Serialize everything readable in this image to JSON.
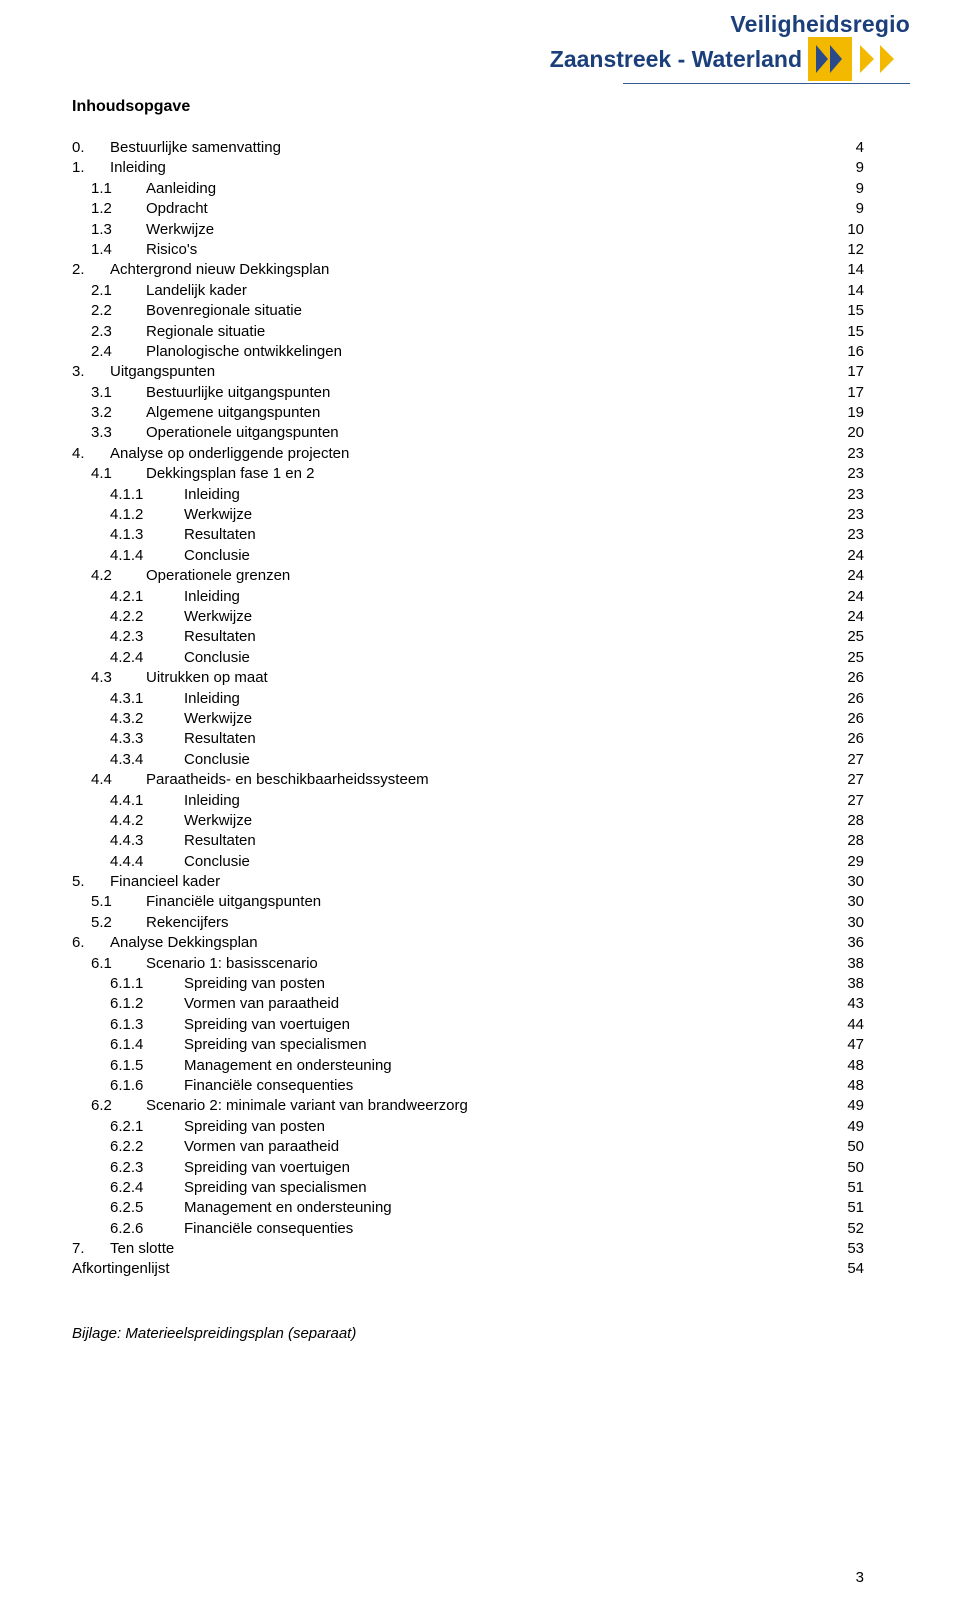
{
  "logo": {
    "line1": "Veiligheidsregio",
    "line2": "Zaanstreek - Waterland",
    "text_color": "#1b3f7a",
    "chevron_yellow": "#f2b900",
    "chevron_blue": "#2a4a8a"
  },
  "title": "Inhoudsopgave",
  "page_number": "3",
  "bijlage": "Bijlage: Materieelspreidingsplan (separaat)",
  "toc": [
    {
      "lvl": 0,
      "num": "0.",
      "txt": "Bestuurlijke samenvatting",
      "pg": "4"
    },
    {
      "lvl": 0,
      "num": "1.",
      "txt": "Inleiding",
      "pg": "9"
    },
    {
      "lvl": 1,
      "num": "1.1",
      "txt": "Aanleiding",
      "pg": "9"
    },
    {
      "lvl": 1,
      "num": "1.2",
      "txt": "Opdracht",
      "pg": "9"
    },
    {
      "lvl": 1,
      "num": "1.3",
      "txt": "Werkwijze",
      "pg": "10"
    },
    {
      "lvl": 1,
      "num": "1.4",
      "txt": "Risico's",
      "pg": "12"
    },
    {
      "lvl": 0,
      "num": "2.",
      "txt": "Achtergrond nieuw Dekkingsplan",
      "pg": "14"
    },
    {
      "lvl": 1,
      "num": "2.1",
      "txt": "Landelijk kader",
      "pg": "14"
    },
    {
      "lvl": 1,
      "num": "2.2",
      "txt": "Bovenregionale situatie",
      "pg": "15"
    },
    {
      "lvl": 1,
      "num": "2.3",
      "txt": "Regionale situatie",
      "pg": "15"
    },
    {
      "lvl": 1,
      "num": "2.4",
      "txt": "Planologische ontwikkelingen",
      "pg": "16"
    },
    {
      "lvl": 0,
      "num": "3.",
      "txt": "Uitgangspunten",
      "pg": "17"
    },
    {
      "lvl": 1,
      "num": "3.1",
      "txt": "Bestuurlijke uitgangspunten",
      "pg": "17"
    },
    {
      "lvl": 1,
      "num": "3.2",
      "txt": "Algemene uitgangspunten",
      "pg": "19"
    },
    {
      "lvl": 1,
      "num": "3.3",
      "txt": "Operationele uitgangspunten",
      "pg": "20"
    },
    {
      "lvl": 0,
      "num": "4.",
      "txt": "Analyse op onderliggende projecten",
      "pg": "23"
    },
    {
      "lvl": 1,
      "num": "4.1",
      "txt": "Dekkingsplan fase 1 en 2",
      "pg": "23"
    },
    {
      "lvl": 2,
      "num": "4.1.1",
      "txt": "Inleiding",
      "pg": "23"
    },
    {
      "lvl": 2,
      "num": "4.1.2",
      "txt": "Werkwijze",
      "pg": "23"
    },
    {
      "lvl": 2,
      "num": "4.1.3",
      "txt": "Resultaten",
      "pg": "23"
    },
    {
      "lvl": 2,
      "num": "4.1.4",
      "txt": "Conclusie",
      "pg": "24"
    },
    {
      "lvl": 1,
      "num": "4.2",
      "txt": "Operationele grenzen",
      "pg": "24"
    },
    {
      "lvl": 2,
      "num": "4.2.1",
      "txt": "Inleiding",
      "pg": "24"
    },
    {
      "lvl": 2,
      "num": "4.2.2",
      "txt": "Werkwijze",
      "pg": "24"
    },
    {
      "lvl": 2,
      "num": "4.2.3",
      "txt": "Resultaten",
      "pg": "25"
    },
    {
      "lvl": 2,
      "num": "4.2.4",
      "txt": "Conclusie",
      "pg": "25"
    },
    {
      "lvl": 1,
      "num": "4.3",
      "txt": "Uitrukken op maat",
      "pg": "26"
    },
    {
      "lvl": 2,
      "num": "4.3.1",
      "txt": "Inleiding",
      "pg": "26"
    },
    {
      "lvl": 2,
      "num": "4.3.2",
      "txt": "Werkwijze",
      "pg": "26"
    },
    {
      "lvl": 2,
      "num": "4.3.3",
      "txt": "Resultaten",
      "pg": "26"
    },
    {
      "lvl": 2,
      "num": "4.3.4",
      "txt": "Conclusie",
      "pg": "27"
    },
    {
      "lvl": 1,
      "num": "4.4",
      "txt": "Paraatheids- en beschikbaarheidssysteem",
      "pg": "27"
    },
    {
      "lvl": 2,
      "num": "4.4.1",
      "txt": "Inleiding",
      "pg": "27"
    },
    {
      "lvl": 2,
      "num": "4.4.2",
      "txt": "Werkwijze",
      "pg": "28"
    },
    {
      "lvl": 2,
      "num": "4.4.3",
      "txt": "Resultaten",
      "pg": "28"
    },
    {
      "lvl": 2,
      "num": "4.4.4",
      "txt": "Conclusie",
      "pg": "29"
    },
    {
      "lvl": 0,
      "num": "5.",
      "txt": "Financieel kader",
      "pg": "30"
    },
    {
      "lvl": 1,
      "num": "5.1",
      "txt": "Financiële uitgangspunten",
      "pg": "30"
    },
    {
      "lvl": 1,
      "num": "5.2",
      "txt": "Rekencijfers",
      "pg": "30"
    },
    {
      "lvl": 0,
      "num": "6.",
      "txt": "Analyse Dekkingsplan",
      "pg": "36"
    },
    {
      "lvl": 1,
      "num": "6.1",
      "txt": "Scenario 1: basisscenario",
      "pg": "38"
    },
    {
      "lvl": 2,
      "num": "6.1.1",
      "txt": "Spreiding van posten",
      "pg": "38"
    },
    {
      "lvl": 2,
      "num": "6.1.2",
      "txt": "Vormen van paraatheid",
      "pg": "43"
    },
    {
      "lvl": 2,
      "num": "6.1.3",
      "txt": "Spreiding van voertuigen",
      "pg": "44"
    },
    {
      "lvl": 2,
      "num": "6.1.4",
      "txt": "Spreiding van specialismen",
      "pg": "47"
    },
    {
      "lvl": 2,
      "num": "6.1.5",
      "txt": "Management en ondersteuning",
      "pg": "48"
    },
    {
      "lvl": 2,
      "num": "6.1.6",
      "txt": "Financiële consequenties",
      "pg": "48"
    },
    {
      "lvl": 1,
      "num": "6.2",
      "txt": "Scenario 2: minimale variant van brandweerzorg",
      "pg": "49"
    },
    {
      "lvl": 2,
      "num": "6.2.1",
      "txt": "Spreiding van posten",
      "pg": "49"
    },
    {
      "lvl": 2,
      "num": "6.2.2",
      "txt": "Vormen van paraatheid",
      "pg": "50"
    },
    {
      "lvl": 2,
      "num": "6.2.3",
      "txt": "Spreiding van voertuigen",
      "pg": "50"
    },
    {
      "lvl": 2,
      "num": "6.2.4",
      "txt": "Spreiding van specialismen",
      "pg": "51"
    },
    {
      "lvl": 2,
      "num": "6.2.5",
      "txt": "Management en ondersteuning",
      "pg": "51"
    },
    {
      "lvl": 2,
      "num": "6.2.6",
      "txt": "Financiële consequenties",
      "pg": "52"
    },
    {
      "lvl": 0,
      "num": "7.",
      "txt": "Ten slotte",
      "pg": "53"
    },
    {
      "lvl": 0,
      "num": "",
      "txt": "Afkortingenlijst",
      "pg": "54",
      "nolabel": true
    }
  ]
}
